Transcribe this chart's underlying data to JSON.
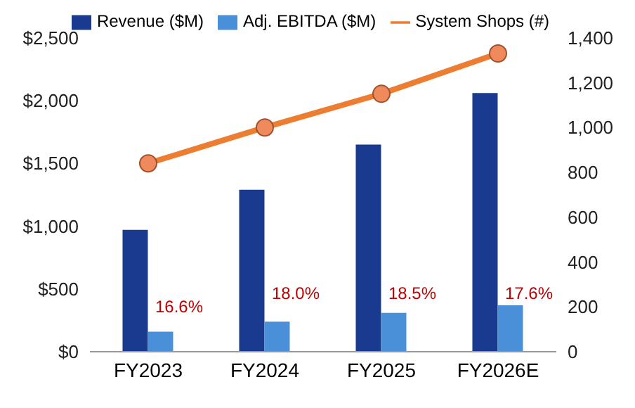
{
  "chart_data": {
    "type": "bar",
    "categories": [
      "FY2023",
      "FY2024",
      "FY2025",
      "FY2026E"
    ],
    "series": [
      {
        "name": "Revenue ($M)",
        "color": "#1a3a8f",
        "values": [
          970,
          1290,
          1650,
          2060
        ]
      },
      {
        "name": "Adj. EBITDA ($M)",
        "color": "#4a90d9",
        "values": [
          160,
          240,
          310,
          370
        ]
      },
      {
        "name": "System Shops (#)",
        "type": "line",
        "axis": "y2",
        "color": "#ed7d31",
        "values": [
          840,
          1000,
          1150,
          1330
        ]
      }
    ],
    "ylim": [
      0,
      2500
    ],
    "yticks": [
      {
        "value": 0,
        "label": "$0"
      },
      {
        "value": 500,
        "label": "$500"
      },
      {
        "value": 1000,
        "label": "$1,000"
      },
      {
        "value": 1500,
        "label": "$1,500"
      },
      {
        "value": 2000,
        "label": "$2,000"
      },
      {
        "value": 2500,
        "label": "$2,500"
      }
    ],
    "y2lim": [
      0,
      1400
    ],
    "y2ticks": [
      0,
      200,
      400,
      600,
      800,
      {
        "value": 1000,
        "label": "1,000"
      },
      {
        "value": 1200,
        "label": "1,200"
      },
      {
        "value": 1400,
        "label": "1,400"
      }
    ],
    "annotations": [
      {
        "text": "16.6%",
        "x": "FY2023",
        "y": 360
      },
      {
        "text": "18.0%",
        "x": "FY2024",
        "y": 470
      },
      {
        "text": "18.5%",
        "x": "FY2025",
        "y": 470
      },
      {
        "text": "17.6%",
        "x": "FY2026E",
        "y": 470
      }
    ],
    "grid": false,
    "legend": "top",
    "marker": "circle"
  }
}
